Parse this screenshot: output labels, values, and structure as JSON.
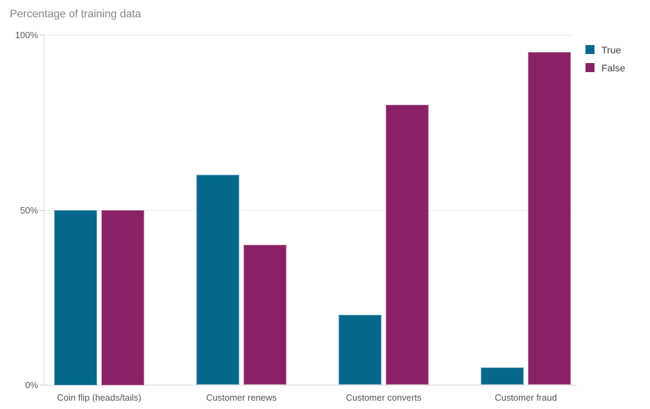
{
  "title": "Percentage of training data",
  "chart_data": {
    "type": "bar",
    "title": "Percentage of training data",
    "categories": [
      "Coin flip (heads/tails)",
      "Customer renews",
      "Customer converts",
      "Customer fraud"
    ],
    "series": [
      {
        "name": "True",
        "color": "#06688c",
        "values": [
          50,
          60,
          20,
          5
        ]
      },
      {
        "name": "False",
        "color": "#8a2164",
        "values": [
          50,
          40,
          80,
          95
        ]
      }
    ],
    "xlabel": "",
    "ylabel": "",
    "ylim": [
      0,
      100
    ],
    "yticks": [
      {
        "label": "0%",
        "value": 0
      },
      {
        "label": "50%",
        "value": 50
      },
      {
        "label": "100%",
        "value": 100
      }
    ],
    "grid": "horizontal",
    "legend_position": "top-right"
  }
}
